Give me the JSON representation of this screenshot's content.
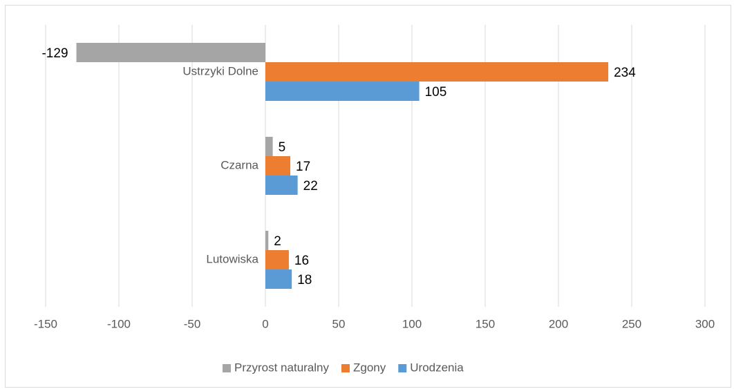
{
  "chart_data": {
    "type": "barh",
    "categories": [
      "Ustrzyki Dolne",
      "Czarna",
      "Lutowiska"
    ],
    "series": [
      {
        "name": "Przyrost naturalny",
        "color": "#a5a5a5",
        "values": [
          -129,
          5,
          2
        ]
      },
      {
        "name": "Zgony",
        "color": "#ed7d31",
        "values": [
          234,
          17,
          16
        ]
      },
      {
        "name": "Urodzenia",
        "color": "#5b9bd5",
        "values": [
          105,
          22,
          18
        ]
      }
    ],
    "xlim": [
      -150,
      300
    ],
    "xticks": [
      -150,
      -100,
      -50,
      0,
      50,
      100,
      150,
      200,
      250,
      300
    ],
    "grid": true,
    "legend": "bottom"
  }
}
